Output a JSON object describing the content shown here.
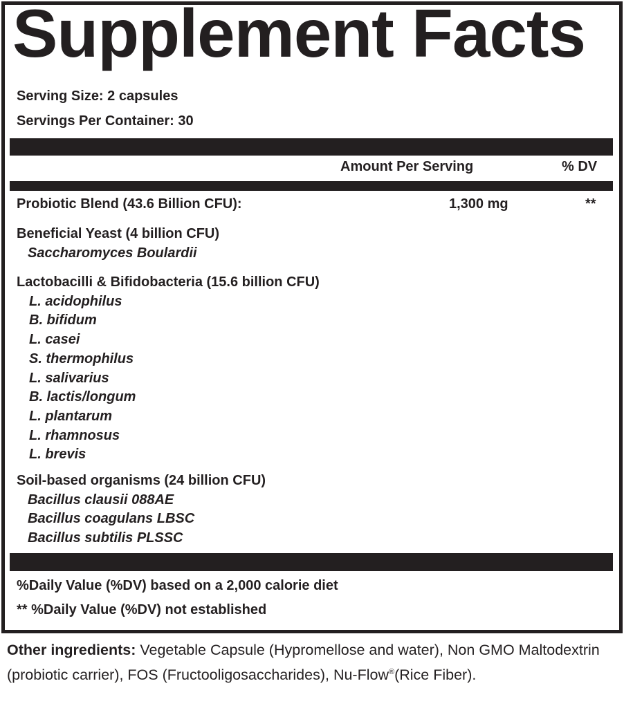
{
  "title": "Supplement Facts",
  "serving_size": "Serving Size: 2 capsules",
  "servings_per_container": "Servings Per Container: 30",
  "header": {
    "amount": "Amount Per Serving",
    "dv": "% DV"
  },
  "blend": {
    "name": "Probiotic Blend (43.6 Billion CFU):",
    "amount": "1,300 mg",
    "dv": "**"
  },
  "groups": [
    {
      "name": "Beneficial Yeast (4 billion CFU)",
      "items": [
        "Saccharomyces Boulardii"
      ]
    },
    {
      "name": "Lactobacilli & Bifidobacteria (15.6 billion CFU)",
      "items": [
        "L. acidophilus",
        "B. bifidum",
        "L. casei",
        "S. thermophilus",
        "L. salivarius",
        "B. lactis/longum",
        "L. plantarum",
        "L. rhamnosus",
        "L. brevis"
      ]
    },
    {
      "name": "Soil-based organisms (24 billion CFU)",
      "items": [
        "Bacillus clausii 088AE",
        "Bacillus coagulans LBSC",
        "Bacillus subtilis PLSSC"
      ]
    }
  ],
  "footnotes": [
    "%Daily Value (%DV) based on a 2,000 calorie diet",
    "** %Daily Value (%DV) not established"
  ],
  "other": {
    "label": "Other ingredients:",
    "text1": " Vegetable Capsule (Hypromellose and water), Non GMO Maltodextrin (probiotic carrier), FOS (Fructooligosaccharides), Nu-Flow",
    "reg": "®",
    "text2": "(Rice Fiber)."
  }
}
